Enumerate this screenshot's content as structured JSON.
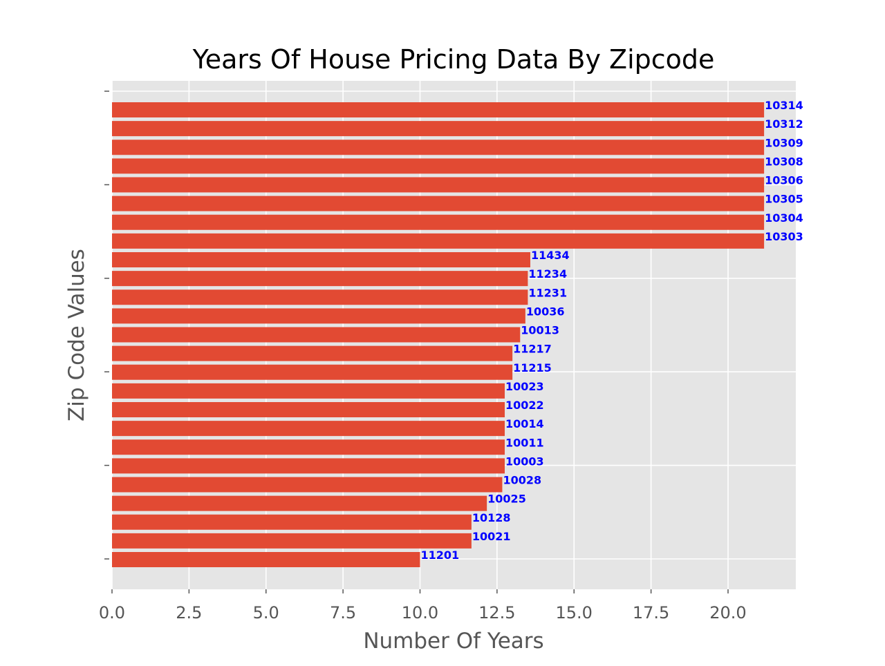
{
  "chart_data": {
    "type": "bar",
    "orientation": "horizontal",
    "title": "Years Of House Pricing Data By Zipcode",
    "xlabel": "Number Of Years",
    "ylabel": "Zip Code Values",
    "xlim": [
      0,
      22.2
    ],
    "xticks": [
      0.0,
      2.5,
      5.0,
      7.5,
      10.0,
      12.5,
      15.0,
      17.5,
      20.0
    ],
    "xtick_labels": [
      "0.0",
      "2.5",
      "5.0",
      "7.5",
      "10.0",
      "12.5",
      "15.0",
      "17.5",
      "20.0"
    ],
    "y_tick_labels_visible": false,
    "grid": true,
    "categories": [
      "10314",
      "10312",
      "10309",
      "10308",
      "10306",
      "10305",
      "10304",
      "10303",
      "11434",
      "11234",
      "11231",
      "10036",
      "10013",
      "11217",
      "11215",
      "10023",
      "10022",
      "10014",
      "10011",
      "10003",
      "10028",
      "10025",
      "10128",
      "10021",
      "11201"
    ],
    "values": [
      21.17,
      21.17,
      21.17,
      21.17,
      21.17,
      21.17,
      21.17,
      21.17,
      13.58,
      13.5,
      13.5,
      13.42,
      13.25,
      13.0,
      13.0,
      12.75,
      12.75,
      12.75,
      12.75,
      12.75,
      12.67,
      12.17,
      11.67,
      11.67,
      10.0
    ],
    "bar_color": "#E24A33",
    "bar_label_color": "#0000FF",
    "plot_background": "#E5E5E5",
    "grid_color": "#FFFFFF"
  }
}
